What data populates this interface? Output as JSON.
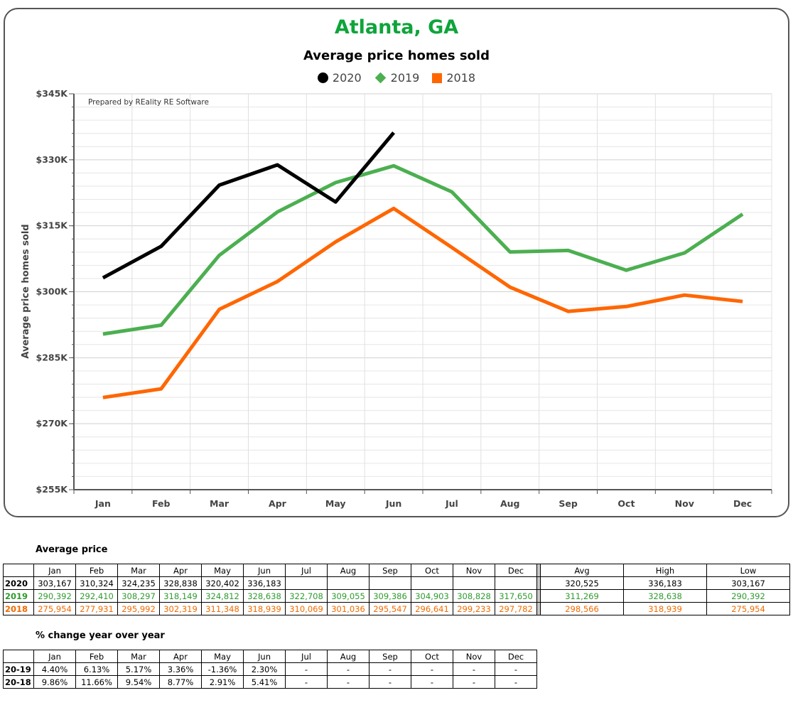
{
  "chart_data": {
    "type": "line",
    "title": "Atlanta, GA",
    "subtitle": "Average price homes sold",
    "ylabel": "Average price homes sold",
    "note": "Prepared by REality RE Software",
    "categories": [
      "Jan",
      "Feb",
      "Mar",
      "Apr",
      "May",
      "Jun",
      "Jul",
      "Aug",
      "Sep",
      "Oct",
      "Nov",
      "Dec"
    ],
    "ylim": [
      255000,
      345000
    ],
    "yticks": [
      255000,
      270000,
      285000,
      300000,
      315000,
      330000,
      345000
    ],
    "ytick_labels": [
      "$255K",
      "$270K",
      "$285K",
      "$300K",
      "$315K",
      "$330K",
      "$345K"
    ],
    "grid": true,
    "legend_position": "top-center",
    "series": [
      {
        "name": "2020",
        "color": "#000000",
        "marker": "circle",
        "values": [
          303167,
          310324,
          324235,
          328838,
          320402,
          336183,
          null,
          null,
          null,
          null,
          null,
          null
        ]
      },
      {
        "name": "2019",
        "color": "#4caf50",
        "marker": "diamond",
        "values": [
          290392,
          292410,
          308297,
          318149,
          324812,
          328638,
          322708,
          309055,
          309386,
          304903,
          308828,
          317650
        ]
      },
      {
        "name": "2018",
        "color": "#ff6600",
        "marker": "square",
        "values": [
          275954,
          277931,
          295992,
          302319,
          311348,
          318939,
          310069,
          301036,
          295547,
          296641,
          299233,
          297782
        ]
      }
    ]
  },
  "colors": {
    "title": "#0ea43a",
    "y2020": "#000000",
    "y2019": "#2f9a2f",
    "y2018": "#f26a00"
  },
  "avg_table": {
    "title": "Average price",
    "months": [
      "Jan",
      "Feb",
      "Mar",
      "Apr",
      "May",
      "Jun",
      "Jul",
      "Aug",
      "Sep",
      "Oct",
      "Nov",
      "Dec"
    ],
    "summary_headers": [
      "Avg",
      "High",
      "Low"
    ],
    "rows": [
      {
        "year": "2020",
        "values": [
          "303,167",
          "310,324",
          "324,235",
          "328,838",
          "320,402",
          "336,183",
          "",
          "",
          "",
          "",
          "",
          ""
        ],
        "summary": [
          "320,525",
          "336,183",
          "303,167"
        ]
      },
      {
        "year": "2019",
        "values": [
          "290,392",
          "292,410",
          "308,297",
          "318,149",
          "324,812",
          "328,638",
          "322,708",
          "309,055",
          "309,386",
          "304,903",
          "308,828",
          "317,650"
        ],
        "summary": [
          "311,269",
          "328,638",
          "290,392"
        ]
      },
      {
        "year": "2018",
        "values": [
          "275,954",
          "277,931",
          "295,992",
          "302,319",
          "311,348",
          "318,939",
          "310,069",
          "301,036",
          "295,547",
          "296,641",
          "299,233",
          "297,782"
        ],
        "summary": [
          "298,566",
          "318,939",
          "275,954"
        ]
      }
    ]
  },
  "pct_table": {
    "title": "% change year over year",
    "months": [
      "Jan",
      "Feb",
      "Mar",
      "Apr",
      "May",
      "Jun",
      "Jul",
      "Aug",
      "Sep",
      "Oct",
      "Nov",
      "Dec"
    ],
    "rows": [
      {
        "label": "20-19",
        "values": [
          "4.40%",
          "6.13%",
          "5.17%",
          "3.36%",
          "-1.36%",
          "2.30%",
          "-",
          "-",
          "-",
          "-",
          "-",
          "-"
        ]
      },
      {
        "label": "20-18",
        "values": [
          "9.86%",
          "11.66%",
          "9.54%",
          "8.77%",
          "2.91%",
          "5.41%",
          "-",
          "-",
          "-",
          "-",
          "-",
          "-"
        ]
      }
    ]
  }
}
